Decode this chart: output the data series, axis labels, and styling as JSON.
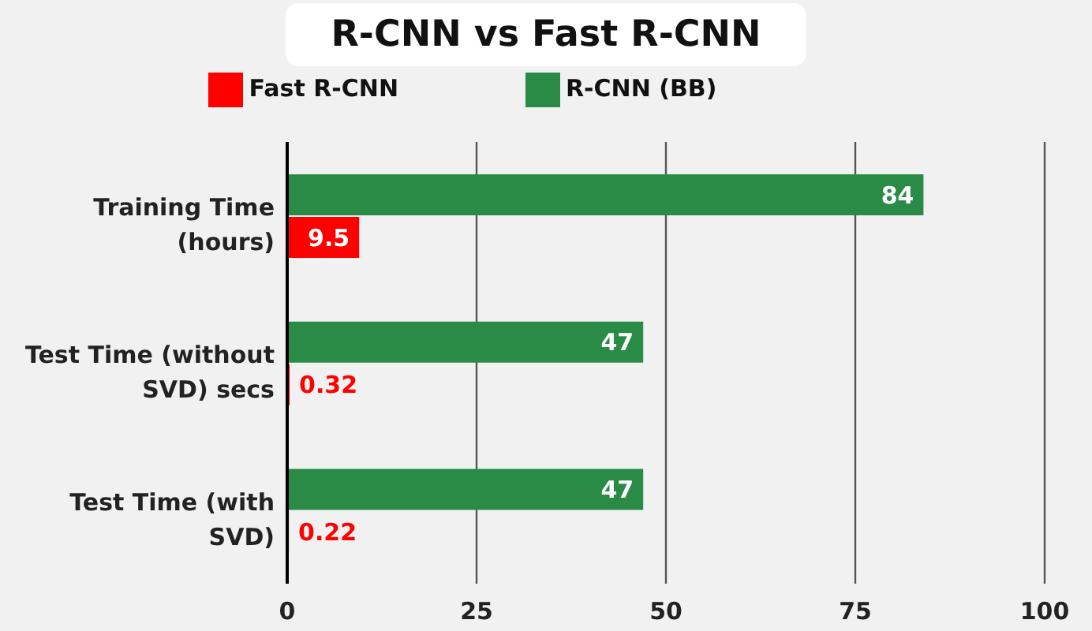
{
  "chart_data": {
    "type": "bar",
    "orientation": "horizontal",
    "title": "R-CNN vs Fast R-CNN",
    "categories": [
      "Training Time (hours)",
      "Test Time (without SVD) secs",
      "Test Time (with SVD)"
    ],
    "series": [
      {
        "name": "R-CNN (BB)",
        "color": "#2a8b47",
        "values": [
          84,
          47,
          47
        ]
      },
      {
        "name": "Fast R-CNN",
        "color": "#ff0000",
        "values": [
          9.5,
          0.32,
          0.22
        ]
      }
    ],
    "xlim": [
      0,
      100
    ],
    "xticks": [
      0,
      25,
      50,
      75,
      100
    ],
    "grid": "x",
    "legend": "top",
    "data_labels": true
  }
}
